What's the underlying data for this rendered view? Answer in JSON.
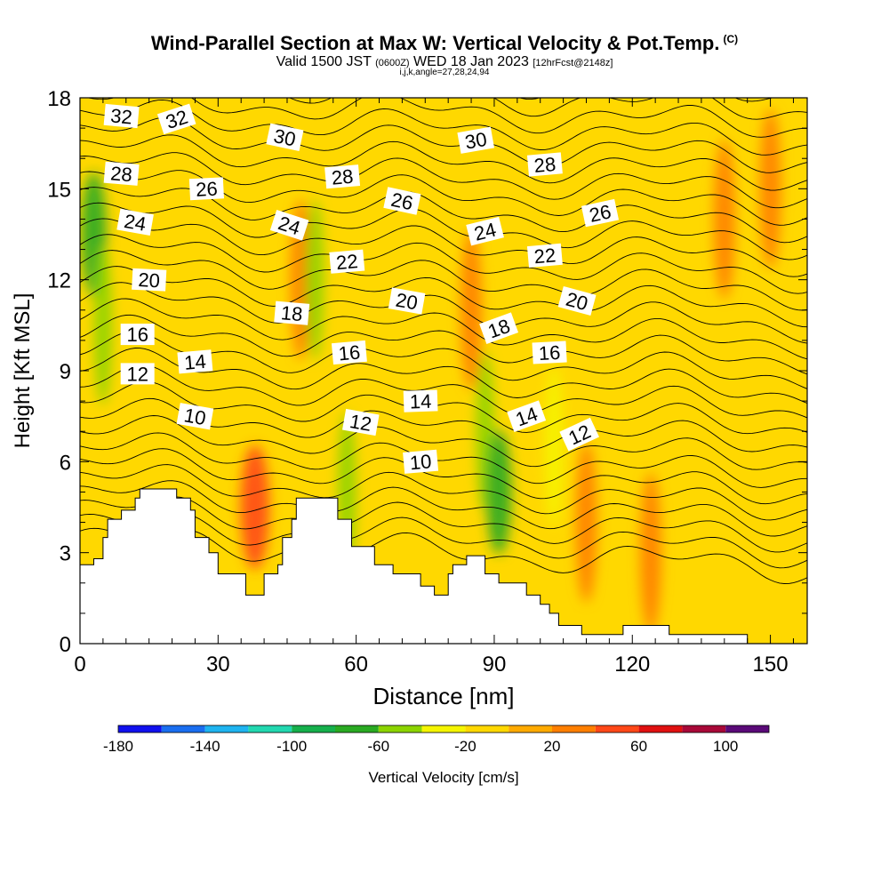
{
  "header": {
    "title": "Wind-Parallel Section at Max W: Vertical Velocity & Pot.Temp.",
    "copyright": "(C)",
    "valid_prefix": "Valid 1500 JST",
    "valid_utc": "(0600Z)",
    "valid_date": "WED 18 Jan 2023",
    "forecast": "[12hrFcst@2148z]",
    "indices": "i,j,k,angle=27,28,24,94"
  },
  "chart_data": {
    "type": "heatmap",
    "xlabel": "Distance [nm]",
    "ylabel": "Height [Kft MSL]",
    "xlim": [
      0,
      158
    ],
    "ylim": [
      0,
      18
    ],
    "x_ticks": [
      0,
      30,
      60,
      90,
      120,
      150
    ],
    "y_ticks": [
      0,
      3,
      6,
      9,
      12,
      15,
      18
    ],
    "field": "Vertical Velocity",
    "colorbar": {
      "label": "Vertical Velocity [cm/s]",
      "tick_labels": [
        -180,
        -140,
        -100,
        -60,
        -20,
        20,
        60,
        100
      ],
      "range": [
        -180,
        120
      ],
      "step": 20,
      "colors": [
        "#1010ee",
        "#1a6ef0",
        "#1fb4f0",
        "#22d8b0",
        "#16b04c",
        "#2aaa22",
        "#8cd400",
        "#f5f500",
        "#ffd800",
        "#ffaa00",
        "#ff7f00",
        "#ff4818",
        "#e01010",
        "#a80838",
        "#5a0a78"
      ]
    },
    "color_bins": [
      {
        "range": [
          -60,
          -40
        ],
        "color": "#2aaa22"
      },
      {
        "range": [
          -40,
          -20
        ],
        "color": "#8cd400"
      },
      {
        "range": [
          -20,
          0
        ],
        "color": "#f5f500"
      },
      {
        "range": [
          0,
          20
        ],
        "color": "#ffd800"
      },
      {
        "range": [
          20,
          40
        ],
        "color": "#ffaa00"
      },
      {
        "range": [
          40,
          60
        ],
        "color": "#ff7f00"
      },
      {
        "range": [
          60,
          80
        ],
        "color": "#ff4818"
      }
    ],
    "w_features": [
      {
        "x": 3,
        "y": 13.5,
        "w": -60
      },
      {
        "x": 5,
        "y": 10.5,
        "w": -40
      },
      {
        "x": 38,
        "y": 4.5,
        "w": 60
      },
      {
        "x": 48,
        "y": 12,
        "w": 40
      },
      {
        "x": 51,
        "y": 12,
        "w": -40
      },
      {
        "x": 58,
        "y": 5.0,
        "w": -40
      },
      {
        "x": 85,
        "y": 11,
        "w": 40
      },
      {
        "x": 88,
        "y": 7.0,
        "w": -40
      },
      {
        "x": 91,
        "y": 5.0,
        "w": -60
      },
      {
        "x": 103,
        "y": 6.5,
        "w": -20
      },
      {
        "x": 110,
        "y": 4.0,
        "w": 40
      },
      {
        "x": 124,
        "y": 3.0,
        "w": 40
      },
      {
        "x": 140,
        "y": 14,
        "w": 40
      },
      {
        "x": 150,
        "y": 15,
        "w": 40
      }
    ],
    "pot_temp_contours": {
      "description": "Potential temperature isolines (degrees)",
      "levels": [
        4,
        5,
        6,
        7,
        8,
        9,
        10,
        11,
        12,
        13,
        14,
        15,
        16,
        17,
        18,
        19,
        20,
        21,
        22,
        23,
        24,
        25,
        26,
        27,
        28,
        29,
        30,
        31,
        32,
        33,
        34
      ],
      "labels": [
        {
          "text": "32",
          "x": 9,
          "y": 17.4,
          "rot": 5
        },
        {
          "text": "32",
          "x": 21,
          "y": 17.3,
          "rot": -18
        },
        {
          "text": "30",
          "x": 44.5,
          "y": 16.7,
          "rot": 12
        },
        {
          "text": "30",
          "x": 86,
          "y": 16.6,
          "rot": -10
        },
        {
          "text": "28",
          "x": 9,
          "y": 15.5,
          "rot": 5
        },
        {
          "text": "28",
          "x": 57,
          "y": 15.4,
          "rot": -5
        },
        {
          "text": "28",
          "x": 101,
          "y": 15.8,
          "rot": -5
        },
        {
          "text": "26",
          "x": 27.5,
          "y": 15.0,
          "rot": -3
        },
        {
          "text": "26",
          "x": 70,
          "y": 14.6,
          "rot": 12
        },
        {
          "text": "26",
          "x": 113,
          "y": 14.2,
          "rot": -12
        },
        {
          "text": "24",
          "x": 12,
          "y": 13.9,
          "rot": 10
        },
        {
          "text": "24",
          "x": 45.5,
          "y": 13.8,
          "rot": 18
        },
        {
          "text": "24",
          "x": 88,
          "y": 13.6,
          "rot": -14
        },
        {
          "text": "22",
          "x": 58,
          "y": 12.6,
          "rot": -5
        },
        {
          "text": "22",
          "x": 101,
          "y": 12.8,
          "rot": -5
        },
        {
          "text": "20",
          "x": 15,
          "y": 12.0,
          "rot": 3
        },
        {
          "text": "20",
          "x": 71,
          "y": 11.3,
          "rot": 10
        },
        {
          "text": "20",
          "x": 108,
          "y": 11.3,
          "rot": 15
        },
        {
          "text": "18",
          "x": 46,
          "y": 10.9,
          "rot": 5
        },
        {
          "text": "18",
          "x": 91,
          "y": 10.4,
          "rot": -20
        },
        {
          "text": "16",
          "x": 12.5,
          "y": 10.2,
          "rot": 0
        },
        {
          "text": "16",
          "x": 58.5,
          "y": 9.6,
          "rot": -5
        },
        {
          "text": "16",
          "x": 102,
          "y": 9.6,
          "rot": -3
        },
        {
          "text": "14",
          "x": 25,
          "y": 9.3,
          "rot": -5
        },
        {
          "text": "14",
          "x": 74,
          "y": 8.0,
          "rot": -2
        },
        {
          "text": "14",
          "x": 97,
          "y": 7.5,
          "rot": -20
        },
        {
          "text": "12",
          "x": 12.5,
          "y": 8.9,
          "rot": 0
        },
        {
          "text": "12",
          "x": 61,
          "y": 7.3,
          "rot": 10
        },
        {
          "text": "12",
          "x": 108.5,
          "y": 6.9,
          "rot": -25
        },
        {
          "text": "10",
          "x": 25,
          "y": 7.5,
          "rot": 10
        },
        {
          "text": "10",
          "x": 74,
          "y": 6.0,
          "rot": -5
        }
      ]
    },
    "terrain": [
      [
        0,
        2.6
      ],
      [
        3,
        2.6
      ],
      [
        3,
        2.8
      ],
      [
        5,
        2.8
      ],
      [
        5,
        3.5
      ],
      [
        6,
        3.5
      ],
      [
        6,
        4.1
      ],
      [
        9,
        4.1
      ],
      [
        9,
        4.4
      ],
      [
        12,
        4.4
      ],
      [
        12,
        4.8
      ],
      [
        13,
        4.8
      ],
      [
        13,
        5.1
      ],
      [
        21,
        5.1
      ],
      [
        21,
        4.8
      ],
      [
        24,
        4.8
      ],
      [
        24,
        4.4
      ],
      [
        25,
        4.4
      ],
      [
        25,
        3.5
      ],
      [
        28,
        3.5
      ],
      [
        28,
        3.0
      ],
      [
        30,
        3.0
      ],
      [
        30,
        2.3
      ],
      [
        36,
        2.3
      ],
      [
        36,
        1.6
      ],
      [
        40,
        1.6
      ],
      [
        40,
        2.3
      ],
      [
        43,
        2.3
      ],
      [
        43,
        2.6
      ],
      [
        44,
        2.6
      ],
      [
        44,
        3.5
      ],
      [
        46,
        3.5
      ],
      [
        46,
        4.1
      ],
      [
        47,
        4.1
      ],
      [
        47,
        4.8
      ],
      [
        56,
        4.8
      ],
      [
        56,
        4.1
      ],
      [
        59,
        4.1
      ],
      [
        59,
        3.2
      ],
      [
        64,
        3.2
      ],
      [
        64,
        2.6
      ],
      [
        68,
        2.6
      ],
      [
        68,
        2.3
      ],
      [
        74,
        2.3
      ],
      [
        74,
        1.9
      ],
      [
        77,
        1.9
      ],
      [
        77,
        1.6
      ],
      [
        80,
        1.6
      ],
      [
        80,
        2.3
      ],
      [
        81,
        2.3
      ],
      [
        81,
        2.6
      ],
      [
        84,
        2.6
      ],
      [
        84,
        2.9
      ],
      [
        88,
        2.9
      ],
      [
        88,
        2.3
      ],
      [
        91,
        2.3
      ],
      [
        91,
        2.0
      ],
      [
        97,
        2.0
      ],
      [
        97,
        1.6
      ],
      [
        100,
        1.6
      ],
      [
        100,
        1.3
      ],
      [
        102,
        1.3
      ],
      [
        102,
        1.0
      ],
      [
        104,
        1.0
      ],
      [
        104,
        0.6
      ],
      [
        109,
        0.6
      ],
      [
        109,
        0.3
      ],
      [
        118,
        0.3
      ],
      [
        118,
        0.6
      ],
      [
        128,
        0.6
      ],
      [
        128,
        0.3
      ],
      [
        145,
        0.3
      ],
      [
        145,
        0
      ],
      [
        158,
        0
      ],
      [
        158,
        -0.1
      ],
      [
        0,
        -0.1
      ]
    ]
  }
}
